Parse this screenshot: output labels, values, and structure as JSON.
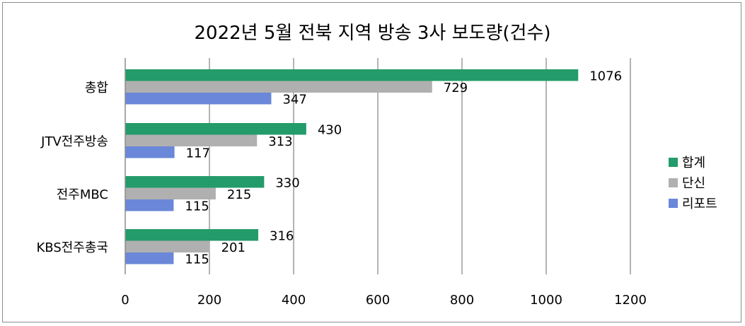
{
  "chart_data": {
    "type": "bar",
    "orientation": "horizontal",
    "title": "2022년 5월 전북 지역 방송 3사 보도량(건수)",
    "categories": [
      "총합",
      "JTV전주방송",
      "전주MBC",
      "KBS전주총국"
    ],
    "series": [
      {
        "name": "합계",
        "color": "#239b6a",
        "values": [
          1076,
          430,
          330,
          316
        ]
      },
      {
        "name": "단신",
        "color": "#b0b0b0",
        "values": [
          729,
          313,
          215,
          201
        ]
      },
      {
        "name": "리포트",
        "color": "#6a87d9",
        "values": [
          347,
          117,
          115,
          115
        ]
      }
    ],
    "xlim": [
      0,
      1200
    ],
    "xticks": [
      0,
      200,
      400,
      600,
      800,
      1000,
      1200
    ],
    "grid": "vertical",
    "legend": "right"
  }
}
